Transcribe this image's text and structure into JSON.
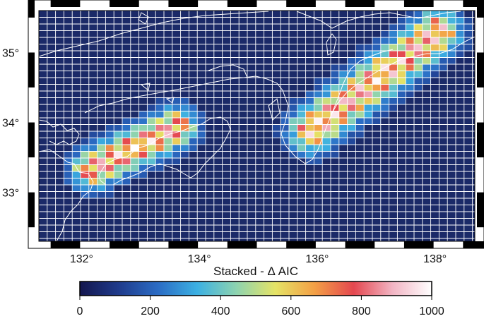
{
  "map": {
    "x_axis": {
      "tick_labels": [
        "132°",
        "134°",
        "136°",
        "138°"
      ],
      "tick_values": [
        132,
        134,
        136,
        138
      ]
    },
    "y_axis": {
      "tick_labels": [
        "33°",
        "34°",
        "35°"
      ],
      "tick_values": [
        33,
        34,
        35
      ]
    },
    "lon_range": [
      131.3,
      138.7
    ],
    "lat_range": [
      32.3,
      35.6
    ],
    "background_color": "#1b2a68",
    "grid_line_color": "#ffffff",
    "coastline_color": "#ffffff"
  },
  "colorbar": {
    "title": "Stacked - Δ AIC",
    "tick_labels": [
      "0",
      "200",
      "400",
      "600",
      "800",
      "1000"
    ],
    "tick_values": [
      0,
      200,
      400,
      600,
      800,
      1000
    ],
    "range": [
      0,
      1000
    ],
    "colors": [
      "#14164e",
      "#1f3b8c",
      "#2b6cc4",
      "#3cb0e2",
      "#8dd3b0",
      "#e5e366",
      "#f3a046",
      "#e4474f",
      "#f2b5c4",
      "#ffffff"
    ]
  }
}
